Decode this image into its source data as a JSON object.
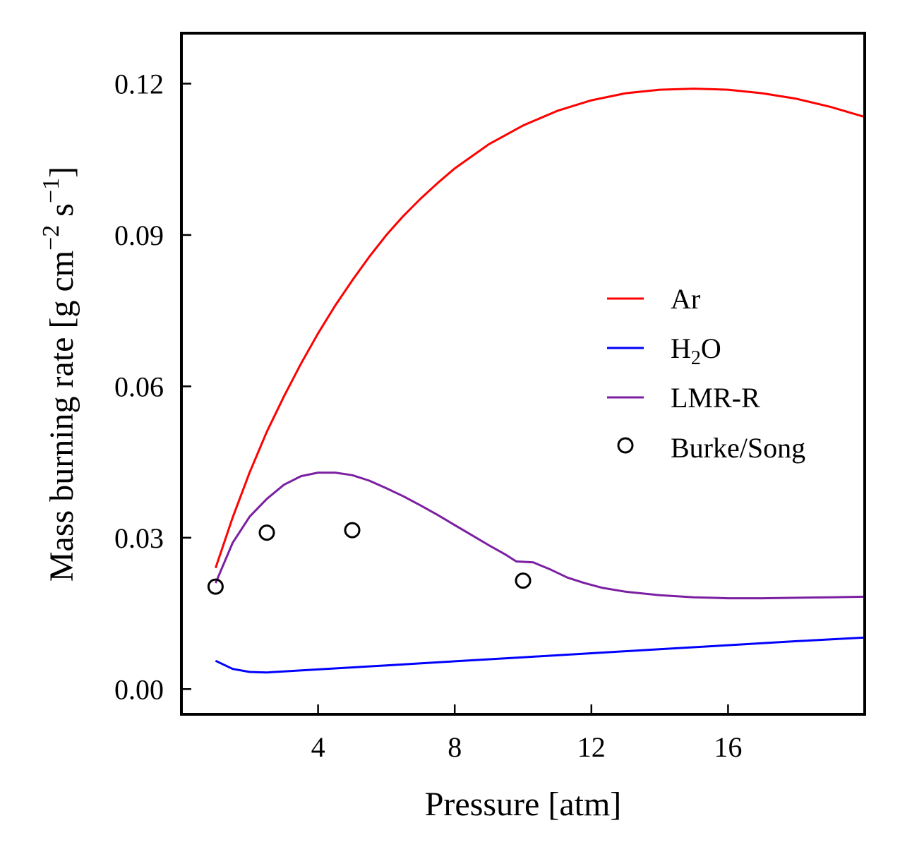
{
  "chart_data": {
    "type": "line",
    "xlabel": "Pressure [atm]",
    "ylabel_parts": {
      "main": "Mass burning rate [g cm",
      "exp1": "−2",
      "mid": " s",
      "exp2": "−1",
      "end": "]"
    },
    "xlim": [
      0,
      20
    ],
    "ylim": [
      -0.005,
      0.13
    ],
    "xticks": [
      4,
      8,
      12,
      16
    ],
    "xtick_labels": [
      "4",
      "8",
      "12",
      "16"
    ],
    "yticks": [
      0.0,
      0.03,
      0.06,
      0.09,
      0.12
    ],
    "ytick_labels": [
      "0.00",
      "0.03",
      "0.06",
      "0.09",
      "0.12"
    ],
    "grid": false,
    "legend_position": "right",
    "series": [
      {
        "name": "Ar",
        "style": "line",
        "color": "#ff0000",
        "x": [
          1,
          1.5,
          2,
          2.5,
          3,
          3.5,
          4,
          4.5,
          5,
          5.5,
          6,
          6.5,
          7,
          7.5,
          8,
          9,
          10,
          11,
          12,
          13,
          14,
          15,
          16,
          17,
          18,
          19,
          20
        ],
        "y": [
          0.024,
          0.034,
          0.043,
          0.051,
          0.058,
          0.0645,
          0.0705,
          0.076,
          0.081,
          0.0857,
          0.09,
          0.0938,
          0.0972,
          0.1003,
          0.1032,
          0.108,
          0.1117,
          0.1146,
          0.1167,
          0.1181,
          0.1188,
          0.119,
          0.1188,
          0.1181,
          0.117,
          0.1154,
          0.1134
        ]
      },
      {
        "name": "H",
        "name_sub": "2",
        "name_end": "O",
        "style": "line",
        "color": "#0000ff",
        "x": [
          1,
          1.5,
          2,
          2.5,
          3,
          4,
          6,
          8,
          10,
          12,
          14,
          16,
          18,
          20
        ],
        "y": [
          0.0056,
          0.004,
          0.0034,
          0.0033,
          0.0035,
          0.0039,
          0.0047,
          0.0055,
          0.0063,
          0.0071,
          0.0079,
          0.0087,
          0.0095,
          0.0102
        ]
      },
      {
        "name": "LMR-R",
        "style": "line",
        "color": "#7b1fa2",
        "x": [
          1,
          1.5,
          2,
          2.5,
          3,
          3.5,
          4,
          4.5,
          5,
          5.5,
          6,
          6.5,
          7,
          7.5,
          8,
          8.5,
          9,
          9.5,
          9.8,
          10.3,
          10.8,
          11.3,
          11.8,
          12.3,
          13,
          14,
          15,
          16,
          17,
          18,
          19,
          20
        ],
        "y": [
          0.021,
          0.029,
          0.0342,
          0.0377,
          0.0405,
          0.0422,
          0.0429,
          0.0429,
          0.0424,
          0.0413,
          0.0398,
          0.0382,
          0.0364,
          0.0345,
          0.0325,
          0.0305,
          0.0285,
          0.0266,
          0.0253,
          0.0251,
          0.0237,
          0.0221,
          0.021,
          0.0201,
          0.0193,
          0.0186,
          0.0182,
          0.018,
          0.018,
          0.0181,
          0.0182,
          0.0183
        ]
      },
      {
        "name": "Burke/Song",
        "style": "markers",
        "color": "#000000",
        "x": [
          1,
          2.5,
          5,
          10
        ],
        "y": [
          0.0203,
          0.031,
          0.0315,
          0.0215
        ]
      }
    ]
  }
}
